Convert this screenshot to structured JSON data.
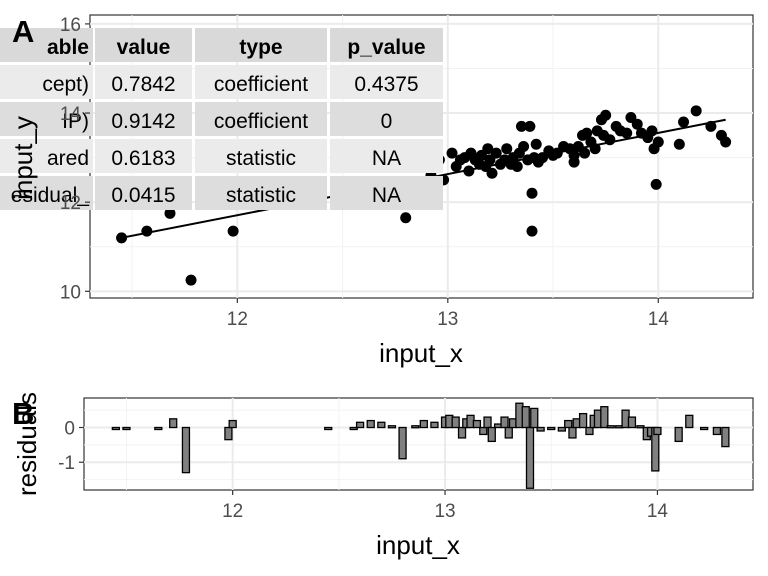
{
  "chart_data": [
    {
      "panel_label": "A",
      "type": "scatter",
      "xlabel": "input_x",
      "ylabel": "input_y",
      "xlim": [
        11.3,
        14.45
      ],
      "ylim": [
        9.85,
        16.2
      ],
      "x_ticks": [
        12,
        13,
        14
      ],
      "y_ticks": [
        10,
        12,
        14,
        16
      ],
      "grid": true,
      "points": [
        [
          11.45,
          11.2
        ],
        [
          11.57,
          11.35
        ],
        [
          11.68,
          11.75
        ],
        [
          11.78,
          10.25
        ],
        [
          11.98,
          11.35
        ],
        [
          12.8,
          11.65
        ],
        [
          12.92,
          12.6
        ],
        [
          12.96,
          12.95
        ],
        [
          12.98,
          12.5
        ],
        [
          13.02,
          13.1
        ],
        [
          13.04,
          12.8
        ],
        [
          13.06,
          12.95
        ],
        [
          13.08,
          13.0
        ],
        [
          13.1,
          12.7
        ],
        [
          13.11,
          13.1
        ],
        [
          13.13,
          12.95
        ],
        [
          13.15,
          12.85
        ],
        [
          13.16,
          13.05
        ],
        [
          13.18,
          12.8
        ],
        [
          13.19,
          13.2
        ],
        [
          13.2,
          12.95
        ],
        [
          13.21,
          12.65
        ],
        [
          13.23,
          13.1
        ],
        [
          13.25,
          12.85
        ],
        [
          13.27,
          12.95
        ],
        [
          13.28,
          13.2
        ],
        [
          13.3,
          12.85
        ],
        [
          13.31,
          13.0
        ],
        [
          13.33,
          12.8
        ],
        [
          13.34,
          13.1
        ],
        [
          13.35,
          13.7
        ],
        [
          13.36,
          13.25
        ],
        [
          13.38,
          12.95
        ],
        [
          13.39,
          13.7
        ],
        [
          13.4,
          12.2
        ],
        [
          13.4,
          11.35
        ],
        [
          13.41,
          13.0
        ],
        [
          13.42,
          13.3
        ],
        [
          13.43,
          12.9
        ],
        [
          13.45,
          13.0
        ],
        [
          13.48,
          13.15
        ],
        [
          13.5,
          13.05
        ],
        [
          13.52,
          13.1
        ],
        [
          13.55,
          13.25
        ],
        [
          13.58,
          13.2
        ],
        [
          13.6,
          13.05
        ],
        [
          13.6,
          12.9
        ],
        [
          13.62,
          13.25
        ],
        [
          13.64,
          13.5
        ],
        [
          13.65,
          13.1
        ],
        [
          13.66,
          13.55
        ],
        [
          13.68,
          13.35
        ],
        [
          13.7,
          13.2
        ],
        [
          13.71,
          13.6
        ],
        [
          13.73,
          13.85
        ],
        [
          13.74,
          13.5
        ],
        [
          13.75,
          13.95
        ],
        [
          13.77,
          13.4
        ],
        [
          13.8,
          13.7
        ],
        [
          13.82,
          13.6
        ],
        [
          13.85,
          13.55
        ],
        [
          13.87,
          13.9
        ],
        [
          13.9,
          13.75
        ],
        [
          13.92,
          13.55
        ],
        [
          13.95,
          13.45
        ],
        [
          13.97,
          13.6
        ],
        [
          13.98,
          13.2
        ],
        [
          13.99,
          12.4
        ],
        [
          14.0,
          13.35
        ],
        [
          14.1,
          13.3
        ],
        [
          14.12,
          13.8
        ],
        [
          14.18,
          14.05
        ],
        [
          14.25,
          13.7
        ],
        [
          14.3,
          13.5
        ],
        [
          14.32,
          13.35
        ]
      ],
      "fit_line": {
        "x": [
          11.45,
          14.32
        ],
        "y": [
          11.2,
          13.85
        ]
      },
      "table": {
        "columns": [
          "able",
          "value",
          "type",
          "p_value"
        ],
        "rows": [
          [
            "cept)",
            "0.7842",
            "coefficient",
            "0.4375"
          ],
          [
            "IP)",
            "0.9142",
            "coefficient",
            "0"
          ],
          [
            "ared",
            "0.6183",
            "statistic",
            "NA"
          ],
          [
            "esidual_",
            "0.0415",
            "statistic",
            "NA"
          ]
        ]
      }
    },
    {
      "panel_label": "B",
      "type": "bar",
      "xlabel": "input_x",
      "ylabel": "residuals",
      "xlim": [
        11.3,
        14.45
      ],
      "ylim": [
        -1.8,
        0.85
      ],
      "x_ticks": [
        12,
        13,
        14
      ],
      "y_ticks": [
        -1,
        0
      ],
      "grid": true,
      "bar_color": "#808080",
      "points": [
        [
          11.45,
          -0.05
        ],
        [
          11.5,
          -0.05
        ],
        [
          11.65,
          -0.05
        ],
        [
          11.78,
          -1.3
        ],
        [
          11.72,
          0.25
        ],
        [
          11.98,
          -0.35
        ],
        [
          12.0,
          0.2
        ],
        [
          12.45,
          -0.05
        ],
        [
          12.57,
          -0.05
        ],
        [
          12.6,
          0.15
        ],
        [
          12.65,
          0.2
        ],
        [
          12.7,
          0.15
        ],
        [
          12.75,
          0.05
        ],
        [
          12.8,
          -0.9
        ],
        [
          12.86,
          0.05
        ],
        [
          12.9,
          0.2
        ],
        [
          12.95,
          0.15
        ],
        [
          13.0,
          0.3
        ],
        [
          13.02,
          0.35
        ],
        [
          13.05,
          0.3
        ],
        [
          13.08,
          -0.3
        ],
        [
          13.1,
          0.25
        ],
        [
          13.12,
          0.35
        ],
        [
          13.15,
          0.2
        ],
        [
          13.18,
          -0.2
        ],
        [
          13.2,
          0.3
        ],
        [
          13.22,
          -0.4
        ],
        [
          13.25,
          0.1
        ],
        [
          13.28,
          0.3
        ],
        [
          13.3,
          -0.3
        ],
        [
          13.32,
          0.25
        ],
        [
          13.35,
          0.7
        ],
        [
          13.38,
          0.6
        ],
        [
          13.4,
          -1.75
        ],
        [
          13.42,
          0.55
        ],
        [
          13.45,
          -0.1
        ],
        [
          13.5,
          -0.05
        ],
        [
          13.55,
          -0.1
        ],
        [
          13.58,
          0.2
        ],
        [
          13.6,
          -0.3
        ],
        [
          13.62,
          0.25
        ],
        [
          13.65,
          0.4
        ],
        [
          13.68,
          -0.2
        ],
        [
          13.7,
          0.35
        ],
        [
          13.72,
          0.5
        ],
        [
          13.75,
          0.6
        ],
        [
          13.78,
          0.05
        ],
        [
          13.82,
          0.05
        ],
        [
          13.85,
          0.5
        ],
        [
          13.88,
          0.3
        ],
        [
          13.92,
          0.05
        ],
        [
          13.95,
          -0.35
        ],
        [
          13.97,
          -0.25
        ],
        [
          13.99,
          -1.25
        ],
        [
          14.0,
          -0.2
        ],
        [
          14.1,
          -0.4
        ],
        [
          14.15,
          0.35
        ],
        [
          14.22,
          -0.05
        ],
        [
          14.28,
          -0.2
        ],
        [
          14.32,
          -0.55
        ]
      ]
    }
  ]
}
